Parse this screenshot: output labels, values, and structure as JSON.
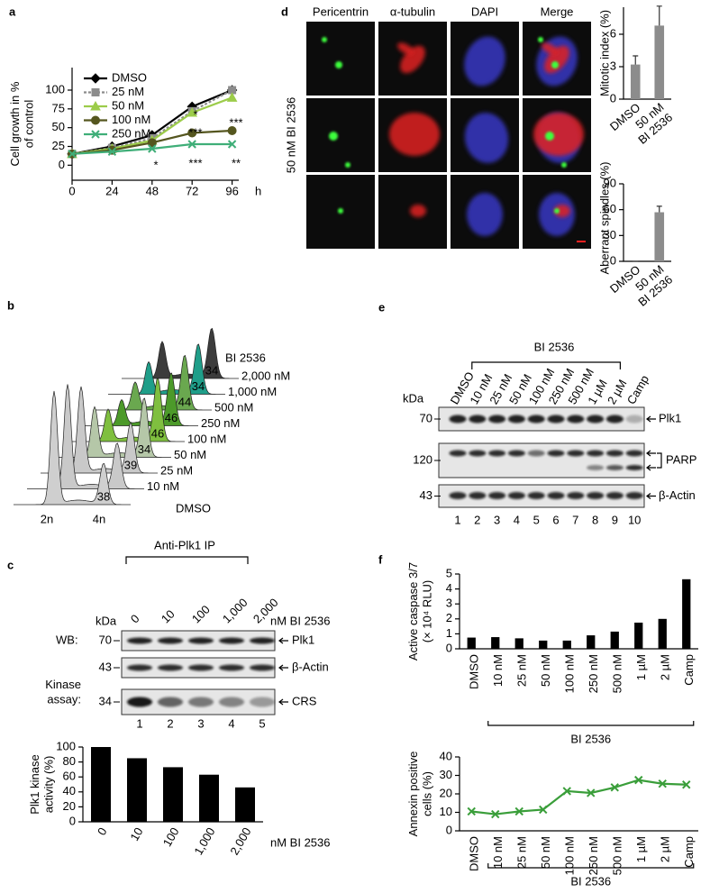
{
  "panel_labels": [
    "a",
    "b",
    "c",
    "d",
    "e",
    "f"
  ],
  "chart_data": [
    {
      "type": "line",
      "ylabel": [
        "Cell growth in %",
        "of control"
      ],
      "xlabel": "h",
      "x": [
        0,
        24,
        48,
        72,
        96
      ],
      "xlim": [
        0,
        100
      ],
      "xticks": [
        0,
        24,
        48,
        72,
        96
      ],
      "ylim": [
        -20,
        130
      ],
      "yticks": [
        0,
        25,
        50,
        75,
        100
      ],
      "series": [
        {
          "name": "DMSO",
          "color": "#000000",
          "marker": "diamond",
          "values": [
            15,
            25,
            40,
            78,
            100
          ]
        },
        {
          "name": "25 nM",
          "color": "#8c8c8c",
          "marker": "square",
          "dash": true,
          "values": [
            15,
            23,
            36,
            72,
            100
          ]
        },
        {
          "name": "50 nM",
          "color": "#9ccc4a",
          "marker": "triangle",
          "values": [
            15,
            22,
            33,
            70,
            90
          ]
        },
        {
          "name": "100 nM",
          "color": "#55561f",
          "marker": "circle",
          "values": [
            15,
            20,
            30,
            43,
            46
          ]
        },
        {
          "name": "250 nM",
          "color": "#3fae78",
          "marker": "x",
          "values": [
            15,
            18,
            22,
            28,
            28
          ]
        }
      ],
      "legend": "upper left",
      "annotations": [
        "*",
        "***",
        "***",
        "*",
        "***",
        "**"
      ]
    },
    {
      "type": "bar",
      "ylabel": [
        "Plk1 kinase",
        "activity (%)"
      ],
      "xlabel": "nM BI 2536",
      "categories": [
        "0",
        "10",
        "100",
        "1,000",
        "2,000"
      ],
      "values": [
        100,
        85,
        73,
        63,
        46
      ],
      "color": "#000000",
      "ylim": [
        0,
        100
      ],
      "yticks": [
        0,
        20,
        40,
        60,
        80,
        100
      ]
    },
    {
      "type": "bar",
      "ylabel": "Mitotic index (%)",
      "categories": [
        "DMSO",
        [
          "50 nM",
          "BI 2536"
        ]
      ],
      "values": [
        3.2,
        6.8
      ],
      "errors": [
        0.8,
        1.8
      ],
      "color": "#8c8c8c",
      "ylim": [
        0,
        8.5
      ],
      "yticks": [
        0,
        3,
        6
      ]
    },
    {
      "type": "bar",
      "ylabel": "Aberrant spindles (%)",
      "categories": [
        "DMSO",
        [
          "50 nM",
          "BI 2536"
        ]
      ],
      "values": [
        0,
        57
      ],
      "errors": [
        0,
        7
      ],
      "color": "#8c8c8c",
      "ylim": [
        0,
        90
      ],
      "yticks": [
        0,
        30,
        60,
        90
      ]
    },
    {
      "type": "bar",
      "ylabel": [
        "Active caspase 3/7",
        "(× 10⁴ RLU)"
      ],
      "categories": [
        "DMSO",
        "10 nM",
        "25 nM",
        "50 nM",
        "100 nM",
        "250 nM",
        "500 nM",
        "1 µM",
        "2 µM",
        "Camp"
      ],
      "values": [
        0.75,
        0.78,
        0.7,
        0.55,
        0.55,
        0.9,
        1.15,
        1.75,
        2.0,
        4.65
      ],
      "color": "#000000",
      "ylim": [
        0,
        5
      ],
      "yticks": [
        0,
        1,
        2,
        3,
        4,
        5
      ],
      "bracket_label": "BI 2536"
    },
    {
      "type": "line",
      "ylabel": [
        "Annexin positive",
        "cells (%)"
      ],
      "categories": [
        "DMSO",
        "10 nM",
        "25 nM",
        "50 nM",
        "100 nM",
        "250 nM",
        "500 nM",
        "1 µM",
        "2 µM",
        "Camp"
      ],
      "values": [
        10.5,
        9,
        10.5,
        11.5,
        21.5,
        20.5,
        23.5,
        27.5,
        25.5,
        25
      ],
      "color": "#3a9e3a",
      "marker": "x",
      "ylim": [
        0,
        40
      ],
      "yticks": [
        0,
        10,
        20,
        30,
        40
      ],
      "bracket_label": "BI 2536"
    }
  ],
  "panel_b": {
    "header": "BI 2536",
    "rows": [
      {
        "label": "2,000 nM",
        "percent": 34
      },
      {
        "label": "1,000 nM",
        "percent": 34
      },
      {
        "label": "500 nM",
        "percent": 44
      },
      {
        "label": "250 nM",
        "percent": 46
      },
      {
        "label": "100 nM",
        "percent": 46
      },
      {
        "label": "50 nM",
        "percent": 34
      },
      {
        "label": "25 nM",
        "percent": 39
      },
      {
        "label": "10 nM"
      },
      {
        "label": "DMSO",
        "percent": 38
      }
    ],
    "ploidy": [
      "2n",
      "4n"
    ]
  },
  "panel_c_blot": {
    "header": "Anti-Plk1 IP",
    "lanes": [
      "0",
      "10",
      "100",
      "1,000",
      "2,000"
    ],
    "unit": "nM BI 2536",
    "kda_label": "kDa",
    "wb_label": "WB:",
    "assay_label": [
      "Kinase",
      "assay:"
    ],
    "rows": [
      {
        "kda": 70,
        "label": "Plk1"
      },
      {
        "kda": 43,
        "label": "β-Actin"
      },
      {
        "kda": 34,
        "label": "CRS"
      }
    ],
    "lane_numbers": [
      1,
      2,
      3,
      4,
      5
    ]
  },
  "panel_d_images": {
    "columns": [
      "Pericentrin",
      "α-tubulin",
      "DAPI",
      "Merge"
    ],
    "row_label": "50 nM BI 2536"
  },
  "panel_e_blot": {
    "header": "BI 2536",
    "lanes": [
      "DMSO",
      "10 nM",
      "25 nM",
      "50 nM",
      "100 nM",
      "250 nM",
      "500 nM",
      "1 µM",
      "2 µM",
      "Camp"
    ],
    "kda_label": "kDa",
    "rows": [
      {
        "kda": 70,
        "label": "Plk1"
      },
      {
        "kda": 120,
        "label": "PARP"
      },
      {
        "kda": 43,
        "label": "β-Actin"
      }
    ],
    "lane_numbers": [
      1,
      2,
      3,
      4,
      5,
      6,
      7,
      8,
      9,
      10
    ]
  }
}
